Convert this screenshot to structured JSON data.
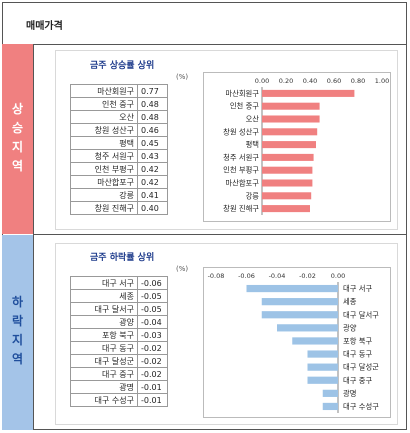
{
  "header": {
    "title": "매매가격"
  },
  "sections": {
    "rise_label": "상승지역",
    "fall_label": "하락지역"
  },
  "rise": {
    "title": "금주 상승률 상위",
    "unit": "(%)",
    "rows": [
      {
        "name": "마산회원구",
        "value": "0.77"
      },
      {
        "name": "인천 중구",
        "value": "0.48"
      },
      {
        "name": "오산",
        "value": "0.48"
      },
      {
        "name": "창원 성산구",
        "value": "0.46"
      },
      {
        "name": "평택",
        "value": "0.45"
      },
      {
        "name": "청주 서원구",
        "value": "0.43"
      },
      {
        "name": "인천 부평구",
        "value": "0.42"
      },
      {
        "name": "마산합포구",
        "value": "0.42"
      },
      {
        "name": "강릉",
        "value": "0.41"
      },
      {
        "name": "창원 진해구",
        "value": "0.40"
      }
    ]
  },
  "fall": {
    "title": "금주 하락률 상위",
    "unit": "(%)",
    "rows": [
      {
        "name": "대구 서구",
        "value": "-0.06"
      },
      {
        "name": "세종",
        "value": "-0.05"
      },
      {
        "name": "대구 달서구",
        "value": "-0.05"
      },
      {
        "name": "광양",
        "value": "-0.04"
      },
      {
        "name": "포항 북구",
        "value": "-0.03"
      },
      {
        "name": "대구 동구",
        "value": "-0.02"
      },
      {
        "name": "대구 달성군",
        "value": "-0.02"
      },
      {
        "name": "대구 중구",
        "value": "-0.02"
      },
      {
        "name": "광명",
        "value": "-0.01"
      },
      {
        "name": "대구 수성구",
        "value": "-0.01"
      }
    ]
  },
  "chart_data": [
    {
      "type": "bar",
      "orientation": "horizontal",
      "categories": [
        "마산회원구",
        "인천 중구",
        "오산",
        "창원 성산구",
        "평택",
        "청주 서원구",
        "인천 부평구",
        "마산합포구",
        "강릉",
        "창원 진해구"
      ],
      "values": [
        0.77,
        0.48,
        0.48,
        0.46,
        0.45,
        0.43,
        0.42,
        0.42,
        0.41,
        0.4
      ],
      "xlim": [
        0,
        1
      ],
      "ticks": [
        "0.00",
        "0.20",
        "0.40",
        "0.60",
        "0.80",
        "1.00"
      ],
      "tick_values": [
        0,
        0.2,
        0.4,
        0.6,
        0.8,
        1.0
      ],
      "color": "#f08080",
      "grid": false
    },
    {
      "type": "bar",
      "orientation": "horizontal",
      "categories": [
        "대구 서구",
        "세종",
        "대구 달서구",
        "광양",
        "포항 북구",
        "대구 동구",
        "대구 달성군",
        "대구 중구",
        "광명",
        "대구 수성구"
      ],
      "values": [
        -0.06,
        -0.05,
        -0.05,
        -0.04,
        -0.03,
        -0.02,
        -0.02,
        -0.02,
        -0.01,
        -0.01
      ],
      "xlim": [
        -0.08,
        0
      ],
      "ticks": [
        "-0.08",
        "-0.06",
        "-0.04",
        "-0.02",
        "0.00"
      ],
      "tick_values": [
        -0.08,
        -0.06,
        -0.04,
        -0.02,
        0
      ],
      "color": "#9dc3e6",
      "grid": false
    }
  ]
}
